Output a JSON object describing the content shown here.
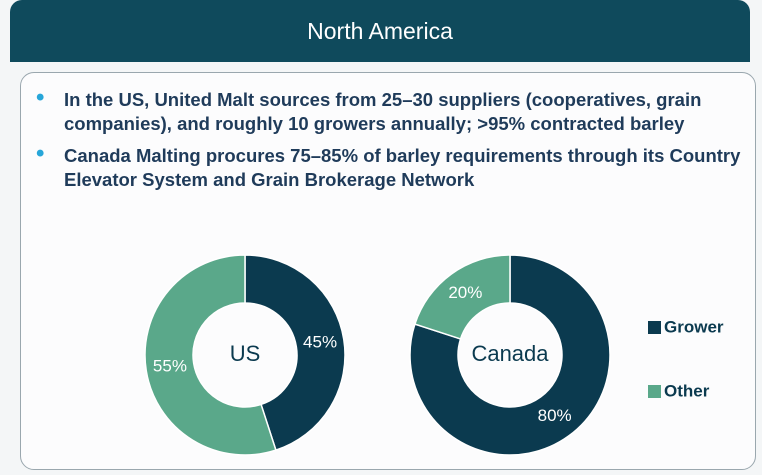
{
  "header": {
    "title": "North America"
  },
  "bullets": [
    "In the US, United Malt sources from 25–30 suppliers (cooperatives, grain companies), and roughly 10 growers annually; >95% contracted barley",
    "Canada Malting procures 75–85% of barley requirements through its Country Elevator System and Grain Brokerage Network"
  ],
  "chart_data": [
    {
      "type": "donut",
      "center_label": "US",
      "categories": [
        "Grower",
        "Other"
      ],
      "values": [
        45,
        55
      ],
      "value_labels": [
        "45%",
        "55%"
      ],
      "colors": [
        "#0b3a4f",
        "#5aa88a"
      ]
    },
    {
      "type": "donut",
      "center_label": "Canada",
      "categories": [
        "Grower",
        "Other"
      ],
      "values": [
        80,
        20
      ],
      "value_labels": [
        "80%",
        "20%"
      ],
      "colors": [
        "#0b3a4f",
        "#5aa88a"
      ],
      "legend": "right"
    }
  ]
}
